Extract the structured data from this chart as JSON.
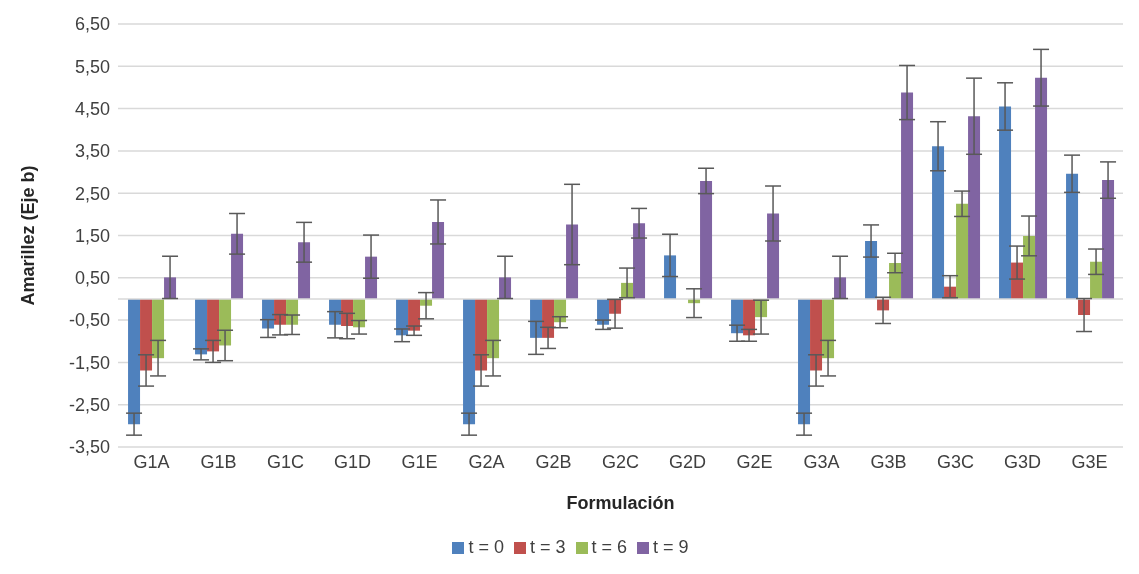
{
  "chart_data": {
    "type": "bar",
    "xlabel": "Formulación",
    "ylabel": "Amarillez  (Eje b)",
    "categories": [
      "G1A",
      "G1B",
      "G1C",
      "G1D",
      "G1E",
      "G2A",
      "G2B",
      "G2C",
      "G2D",
      "G2E",
      "G3A",
      "G3B",
      "G3C",
      "G3D",
      "G3E"
    ],
    "series": [
      {
        "name": "t = 0",
        "color": "#4f81bd",
        "values": [
          -2.96,
          -1.31,
          -0.7,
          -0.61,
          -0.86,
          -2.96,
          -0.92,
          -0.61,
          1.03,
          -0.81,
          -2.96,
          1.37,
          3.61,
          4.55,
          2.96
        ],
        "errors": [
          0.26,
          0.13,
          0.21,
          0.31,
          0.15,
          0.26,
          0.39,
          0.11,
          0.5,
          0.19,
          0.26,
          0.38,
          0.58,
          0.56,
          0.44
        ]
      },
      {
        "name": "t = 3",
        "color": "#c0504d",
        "values": [
          -1.69,
          -1.24,
          -0.61,
          -0.64,
          -0.75,
          -1.69,
          -0.92,
          -0.35,
          null,
          -0.86,
          -1.69,
          -0.27,
          0.29,
          0.86,
          -0.38
        ],
        "errors": [
          0.37,
          0.26,
          0.24,
          0.3,
          0.11,
          0.37,
          0.25,
          0.34,
          null,
          0.14,
          0.37,
          0.31,
          0.26,
          0.39,
          0.39
        ]
      },
      {
        "name": "t = 6",
        "color": "#9bbb59",
        "values": [
          -1.4,
          -1.1,
          -0.61,
          -0.67,
          -0.16,
          -1.4,
          -0.55,
          0.38,
          -0.1,
          -0.43,
          -1.4,
          0.85,
          2.25,
          1.49,
          0.88
        ],
        "errors": [
          0.42,
          0.36,
          0.23,
          0.16,
          0.31,
          0.42,
          0.13,
          0.35,
          0.34,
          0.4,
          0.42,
          0.23,
          0.3,
          0.47,
          0.3
        ]
      },
      {
        "name": "t = 9",
        "color": "#8064a2",
        "values": [
          0.51,
          1.54,
          1.34,
          1.0,
          1.82,
          0.51,
          1.76,
          1.79,
          2.79,
          2.02,
          0.51,
          4.88,
          4.32,
          5.23,
          2.81
        ],
        "errors": [
          0.5,
          0.48,
          0.47,
          0.51,
          0.52,
          0.5,
          0.95,
          0.35,
          0.3,
          0.65,
          0.5,
          0.64,
          0.9,
          0.67,
          0.43
        ]
      }
    ],
    "ylim": [
      -3.5,
      6.5
    ],
    "yticks": [
      {
        "value": -3.5,
        "label": "-3,50"
      },
      {
        "value": -2.5,
        "label": "-2,50"
      },
      {
        "value": -1.5,
        "label": "-1,50"
      },
      {
        "value": -0.5,
        "label": "-0,50"
      },
      {
        "value": 0.5,
        "label": "0,50"
      },
      {
        "value": 1.5,
        "label": "1,50"
      },
      {
        "value": 2.5,
        "label": "2,50"
      },
      {
        "value": 3.5,
        "label": "3,50"
      },
      {
        "value": 4.5,
        "label": "4,50"
      },
      {
        "value": 5.5,
        "label": "5,50"
      },
      {
        "value": 6.5,
        "label": "6,50"
      }
    ],
    "grid": "y",
    "legend": "bottom"
  }
}
